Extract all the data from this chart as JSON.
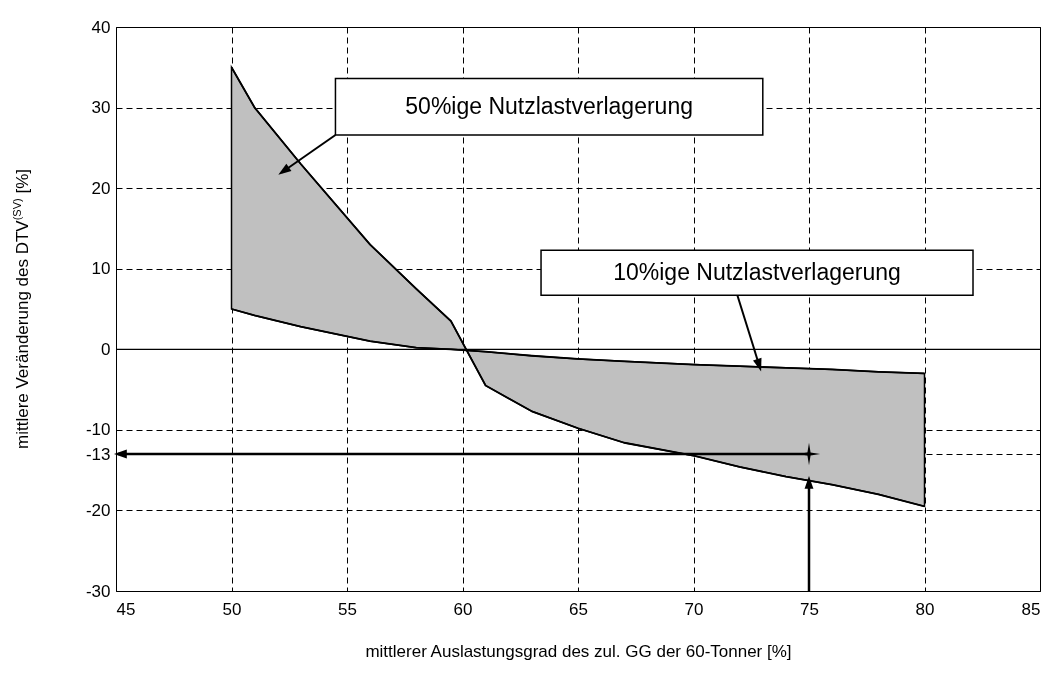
{
  "chart_data": {
    "type": "line",
    "xlabel": "mittlerer Auslastungsgrad des zul. GG der 60-Tonner [%]",
    "ylabel": "mittlere Veränderung des DTV$^{(SV)}$ [%]",
    "x": [
      50,
      51,
      53,
      56,
      58,
      59.5,
      61,
      63,
      65,
      67,
      70,
      72,
      74,
      76,
      78,
      80
    ],
    "series": [
      {
        "color": "#000000",
        "values": [
          35,
          30,
          23,
          13,
          7.5,
          3.5,
          -4.5,
          -7.7,
          -9.8,
          -11.6,
          -13.2,
          -14.6,
          -15.8,
          -16.8,
          -18,
          -19.5
        ],
        "lower": [
          5,
          4.2,
          2.8,
          1,
          0.2,
          0,
          -0.3,
          -0.8,
          -1.2,
          -1.5,
          -1.9,
          -2.1,
          -2.3,
          -2.5,
          -2.8,
          -3
        ],
        "upper": [
          35,
          30,
          23,
          13,
          7.5,
          3.5,
          -4.5,
          -7.7,
          -9.8,
          -11.6,
          -13.2,
          -14.6,
          -15.8,
          -16.8,
          -18,
          -19.5
        ]
      },
      {
        "color": "#000000",
        "values": [
          5,
          4.2,
          2.8,
          1,
          0.2,
          0,
          -0.3,
          -0.8,
          -1.2,
          -1.5,
          -1.9,
          -2.1,
          -2.3,
          -2.5,
          -2.8,
          -3
        ]
      },
      {
        "type": "scatter",
        "color": "#000000",
        "marker": "cross",
        "x": [
          75
        ],
        "values": [
          -13
        ]
      }
    ],
    "annotations": [
      "50%ige Nutzlastverlagerung",
      {
        "text": "10%ige Nutzlastverlagerung",
        "x": 72.9,
        "y": -2.5
      }
    ],
    "ref_lines": [
      {
        "axis": "y",
        "value": 0,
        "line_style": "solid",
        "color": "#000000"
      }
    ],
    "xlim": [
      45,
      85
    ],
    "xticks": [
      45,
      50,
      55,
      60,
      65,
      70,
      75,
      80,
      85
    ],
    "ylim": [
      -30,
      40
    ],
    "yticks": [
      -30,
      -20,
      -13,
      -10,
      0,
      10,
      20,
      30,
      40
    ],
    "grid": true
  }
}
